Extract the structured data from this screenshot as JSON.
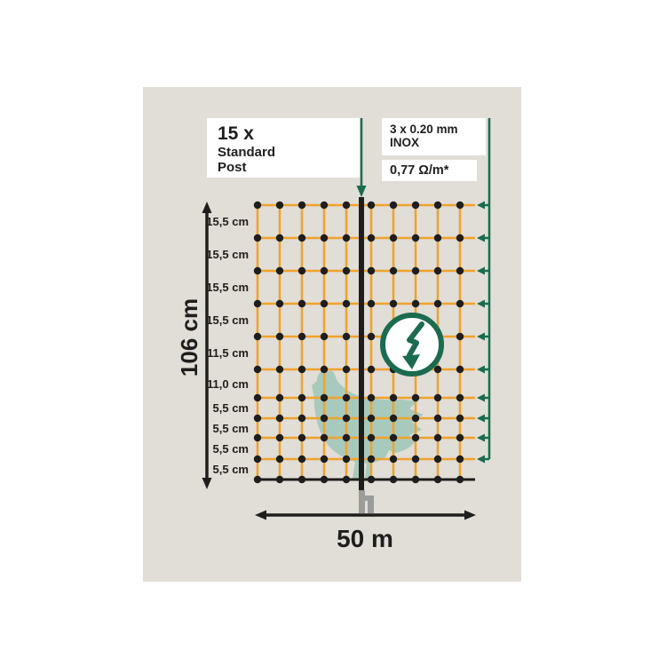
{
  "title": "Electric poultry netting diagram",
  "colors": {
    "panel_bg": "#e1ddd7",
    "strand_orange": "#f0a22b",
    "line_black": "#1e1e1c",
    "energizer_green": "#1b6b4f",
    "chicken_teal": "#a8cabc",
    "spike_grey": "#9c9c9a",
    "box_white": "#ffffff"
  },
  "boxes": {
    "post": {
      "count": "15 x",
      "line1": "Standard",
      "line2": "Post"
    },
    "conductor": "3 x 0.20 mm INOX",
    "resistance": "0,77 Ω/m*"
  },
  "dimensions": {
    "height": "106 cm",
    "length": "50 m"
  },
  "net": {
    "rows": [
      "15,5 cm",
      "15,5 cm",
      "15,5 cm",
      "15,5 cm",
      "11,5 cm",
      "11,0 cm",
      "5,5 cm",
      "5,5 cm",
      "5,5 cm",
      "5,5 cm"
    ],
    "vertical_strand_count": 10,
    "horizontal_strand_count": 11,
    "electrified_row_count": 10
  },
  "icons": {
    "lightning_bolt": "electrified-net-badge",
    "down_arrow": "energizer-connection-arrow",
    "left_arrows": "electrified-strand-arrows",
    "chicken": "chicken-silhouette"
  }
}
